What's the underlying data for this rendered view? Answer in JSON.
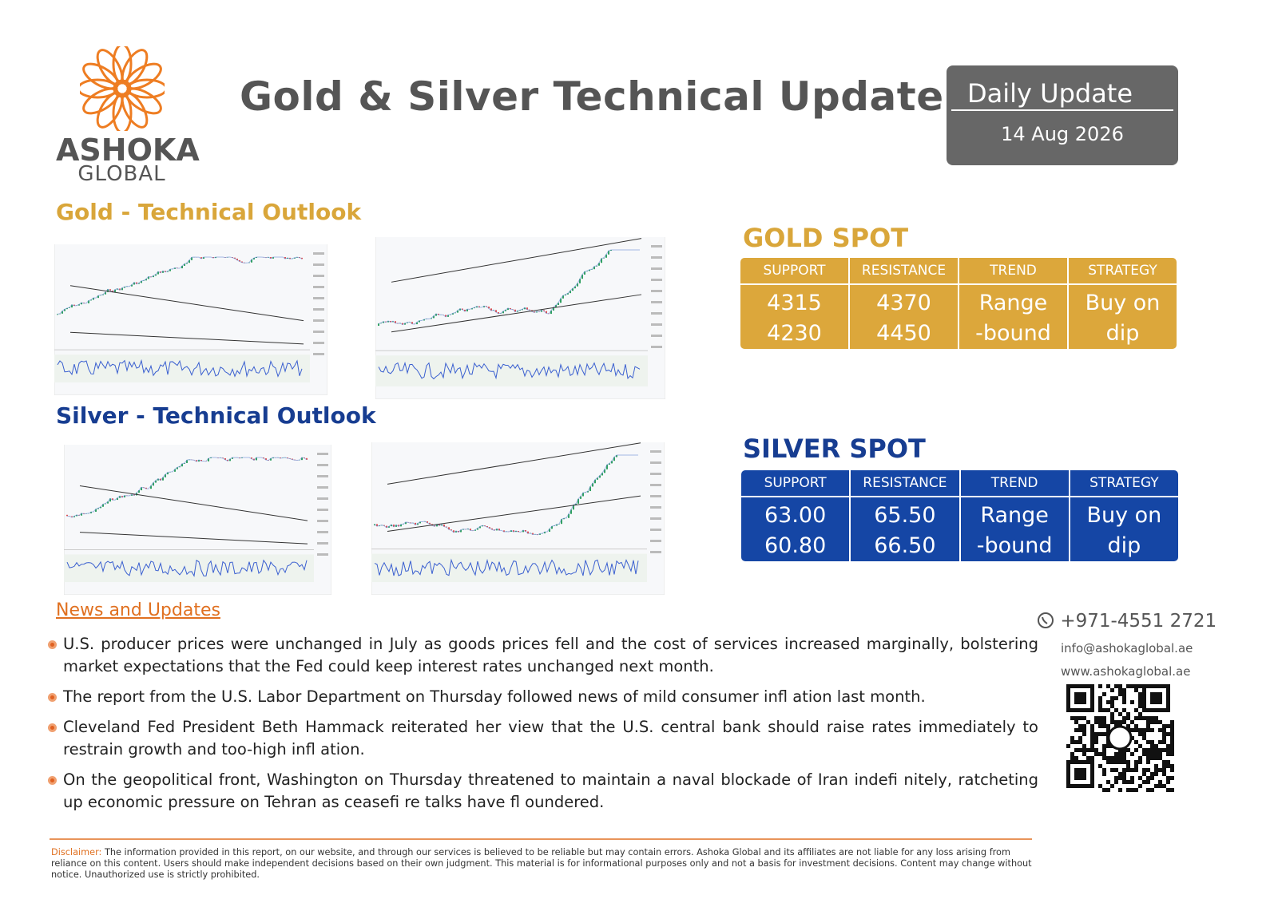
{
  "header": {
    "logo": {
      "name": "ASHOKA",
      "sub": "GLOBAL"
    },
    "title": "Gold & Silver Technical Update",
    "badge": {
      "label": "Daily Update",
      "date": "14 Aug 2026"
    }
  },
  "gold": {
    "heading": "Gold - Technical Outlook",
    "spot": {
      "heading": "GOLD SPOT",
      "columns": [
        "SUPPORT",
        "RESISTANCE",
        "TREND",
        "STRATEGY"
      ],
      "cells": [
        [
          "4315",
          "4230"
        ],
        [
          "4370",
          "4450"
        ],
        [
          "Range",
          "-bound"
        ],
        [
          "Buy on",
          "dip"
        ]
      ]
    }
  },
  "silver": {
    "heading": "Silver - Technical Outlook",
    "spot": {
      "heading": "SILVER SPOT",
      "columns": [
        "SUPPORT",
        "RESISTANCE",
        "TREND",
        "STRATEGY"
      ],
      "cells": [
        [
          "63.00",
          "60.80"
        ],
        [
          "65.50",
          "66.50"
        ],
        [
          "Range",
          "-bound"
        ],
        [
          "Buy on",
          "dip"
        ]
      ]
    }
  },
  "news": {
    "heading": "News and Updates",
    "items": [
      "U.S. producer prices were unchanged in July as goods prices fell and the cost of services increased marginally, bolstering market expectations that the Fed could keep interest rates unchanged next month.",
      "The report from the U.S. Labor Department on Thursday followed news of mild consumer infl ation last month.",
      "Cleveland Fed President Beth Hammack reiterated her view that the U.S. central bank should raise rates immediately to restrain growth and too-high infl ation.",
      "On the geopolitical front, Washington on Thursday threatened to maintain a naval blockade of Iran indefi nitely, ratcheting up economic pressure on Tehran as ceasefi re talks have fl oundered."
    ]
  },
  "contact": {
    "phone": "+971-4551 2721",
    "email": "info@ashokaglobal.ae",
    "web": "www.ashokaglobal.ae"
  },
  "disclaimer": {
    "label": "Disclaimer:",
    "text": "The information provided in this report, on our website, and through our services is believed to be reliable but may contain errors. Ashoka Global and its affiliates are not liable for any loss arising from reliance on this content. Users should make independent decisions based on their own judgment. This material is for informational purposes only and not a basis for investment decisions. Content may change without notice. Unauthorized use is strictly prohibited."
  }
}
